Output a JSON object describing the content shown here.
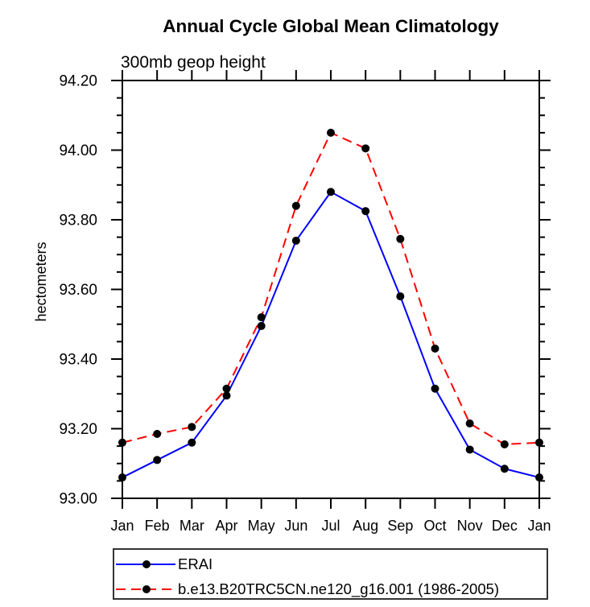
{
  "header": {
    "title": "Annual Cycle Global Mean Climatology",
    "subtitle": "300mb geop height"
  },
  "chart_data": {
    "type": "line",
    "title": "Annual Cycle Global Mean Climatology",
    "subtitle": "300mb geop height",
    "ylabel": "hectometers",
    "xlabel": "",
    "x": [
      "Jan",
      "Feb",
      "Mar",
      "Apr",
      "May",
      "Jun",
      "Jul",
      "Aug",
      "Sep",
      "Oct",
      "Nov",
      "Dec",
      "Jan"
    ],
    "series": [
      {
        "name": "ERAI",
        "color": "#0000ff",
        "line_style": "solid",
        "marker": "circle",
        "marker_color": "#000000",
        "values": [
          93.06,
          93.11,
          93.16,
          93.295,
          93.495,
          93.74,
          93.88,
          93.825,
          93.58,
          93.315,
          93.14,
          93.085,
          93.06
        ]
      },
      {
        "name": "b.e13.B20TRC5CN.ne120_g16.001 (1986-2005)",
        "color": "#ff0000",
        "line_style": "dashed",
        "marker": "circle",
        "marker_color": "#000000",
        "values": [
          93.16,
          93.185,
          93.205,
          93.315,
          93.52,
          93.84,
          94.05,
          94.005,
          93.745,
          93.43,
          93.215,
          93.155,
          93.16
        ]
      }
    ],
    "ylim": [
      93.0,
      94.2
    ],
    "y_major_step": 0.2,
    "y_minor_step": 0.05,
    "y_tick_labels": [
      "93.00",
      "93.20",
      "93.40",
      "93.60",
      "93.80",
      "94.00",
      "94.20"
    ],
    "grid": false,
    "legend_position": "bottom-left",
    "axis_color": "#000000"
  }
}
